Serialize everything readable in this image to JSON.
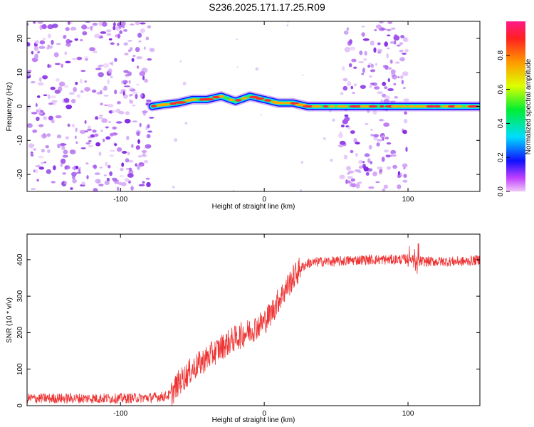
{
  "figure": {
    "title": "S236.2025.171.17.25.R09"
  },
  "chart_data": [
    {
      "type": "heatmap",
      "title": "S236.2025.171.17.25.R09",
      "xlabel": "Height of straight line (km)",
      "ylabel": "Frequency (Hz)",
      "xlim": [
        -165,
        150
      ],
      "ylim": [
        -25,
        25
      ],
      "x_ticks": [
        -100,
        0,
        100
      ],
      "y_ticks": [
        -20,
        -10,
        0,
        10,
        20
      ],
      "colorbar": {
        "label": "Normalized spectral amplitude",
        "range": [
          0,
          1
        ],
        "ticks": [
          "0.0",
          "0.2",
          "0.4",
          "0.6",
          "0.8"
        ],
        "colormap": "rainbow"
      },
      "features": {
        "scattered_noise_regions_km": [
          [
            -165,
            -78
          ],
          [
            53,
            100
          ]
        ],
        "carrier_line_points": [
          [
            -78,
            0
          ],
          [
            -70,
            0.5
          ],
          [
            -60,
            1
          ],
          [
            -50,
            2
          ],
          [
            -40,
            2
          ],
          [
            -30,
            3
          ],
          [
            -20,
            1.5
          ],
          [
            -10,
            3
          ],
          [
            0,
            2
          ],
          [
            10,
            1
          ],
          [
            20,
            1
          ],
          [
            30,
            0
          ],
          [
            40,
            0
          ],
          [
            50,
            0
          ],
          [
            60,
            0
          ],
          [
            70,
            0
          ],
          [
            80,
            0
          ],
          [
            90,
            0
          ],
          [
            100,
            0
          ],
          [
            110,
            0
          ],
          [
            120,
            0
          ],
          [
            130,
            0
          ],
          [
            140,
            0
          ],
          [
            150,
            0
          ]
        ]
      }
    },
    {
      "type": "line",
      "xlabel": "Height of straight line (km)",
      "ylabel": "SNR (10 * v/v)",
      "xlim": [
        -165,
        150
      ],
      "ylim": [
        0,
        470
      ],
      "x_ticks": [
        -100,
        0,
        100
      ],
      "y_ticks": [
        0,
        100,
        200,
        300,
        400
      ],
      "color": "#ee3333",
      "series": [
        {
          "x": [
            -165,
            -140,
            -120,
            -100,
            -80,
            -70,
            -65,
            -60,
            -55,
            -50,
            -45,
            -40,
            -30,
            -20,
            -10,
            0,
            5,
            10,
            15,
            20,
            25,
            30,
            40,
            50,
            60,
            70,
            80,
            90,
            100,
            110,
            120,
            130,
            140,
            150
          ],
          "values": [
            20,
            20,
            20,
            20,
            22,
            25,
            30,
            60,
            80,
            100,
            115,
            130,
            160,
            185,
            205,
            230,
            255,
            290,
            320,
            350,
            375,
            390,
            395,
            395,
            398,
            400,
            400,
            400,
            402,
            395,
            395,
            395,
            395,
            400
          ]
        }
      ],
      "noise_amplitude": 14
    }
  ]
}
